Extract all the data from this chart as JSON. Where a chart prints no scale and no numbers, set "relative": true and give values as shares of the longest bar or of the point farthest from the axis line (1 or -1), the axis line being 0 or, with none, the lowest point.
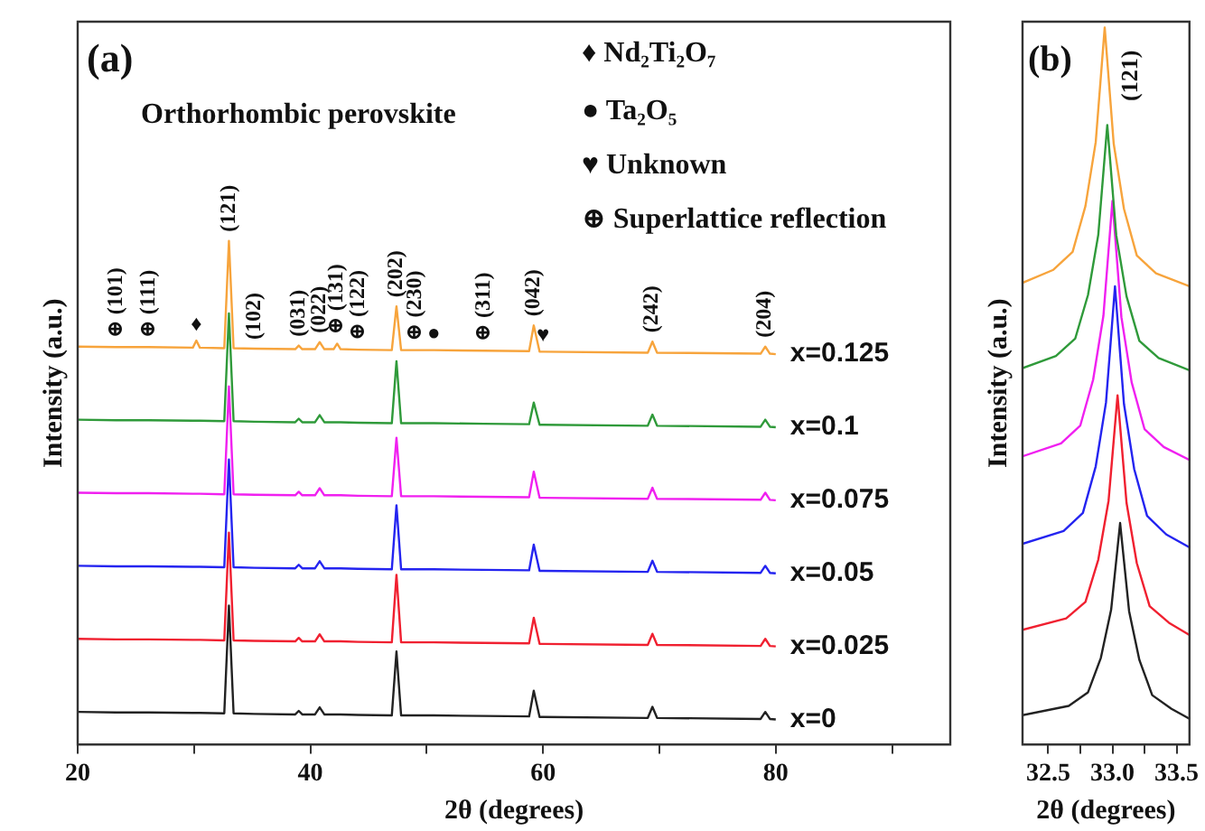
{
  "chart_data": [
    {
      "type": "line",
      "xlabel": "2θ (degrees)",
      "ylabel": "Intensity (a.u.)",
      "relative": true,
      "legend": false,
      "grid": false,
      "marker": "none",
      "tick_labels": "x",
      "xlim": [
        20,
        95
      ],
      "xticks": [
        20,
        {
          "value": 30,
          "label": null
        },
        40,
        {
          "value": 50,
          "label": null
        },
        60,
        {
          "value": 70,
          "label": null
        },
        80,
        {
          "value": 90,
          "label": null
        }
      ],
      "x": [
        20,
        23.3,
        26.1,
        29.9,
        30.2,
        30.5,
        32.6,
        33.0,
        33.4,
        35.2,
        38.7,
        39.0,
        39.3,
        40.4,
        40.8,
        41.2,
        42.0,
        42.3,
        42.6,
        44.1,
        47.0,
        47.4,
        47.8,
        49.0,
        50.6,
        54.9,
        58.8,
        59.2,
        59.7,
        60.0,
        69.0,
        69.4,
        69.8,
        78.7,
        79.1,
        79.5,
        80
      ],
      "series": [
        {
          "name": "x=0",
          "color": "#222222",
          "values": [
            0.065,
            0.064,
            0.064,
            0.063,
            0.063,
            0.063,
            0.062,
            0.276,
            0.062,
            0.061,
            0.06,
            0.067,
            0.06,
            0.06,
            0.074,
            0.06,
            0.06,
            0.06,
            0.06,
            0.059,
            0.058,
            0.185,
            0.058,
            0.058,
            0.058,
            0.057,
            0.056,
            0.107,
            0.055,
            0.055,
            0.053,
            0.075,
            0.053,
            0.051,
            0.065,
            0.051,
            0.05
          ]
        },
        {
          "name": "x=0.025",
          "color": "#f02030",
          "values": [
            0.21,
            0.209,
            0.209,
            0.208,
            0.208,
            0.208,
            0.207,
            0.421,
            0.207,
            0.206,
            0.205,
            0.212,
            0.205,
            0.205,
            0.219,
            0.205,
            0.205,
            0.205,
            0.205,
            0.204,
            0.203,
            0.337,
            0.203,
            0.203,
            0.203,
            0.202,
            0.201,
            0.252,
            0.2,
            0.2,
            0.198,
            0.22,
            0.198,
            0.196,
            0.21,
            0.196,
            0.195
          ]
        },
        {
          "name": "x=0.05",
          "color": "#2424f0",
          "values": [
            0.355,
            0.354,
            0.354,
            0.353,
            0.353,
            0.353,
            0.352,
            0.566,
            0.352,
            0.351,
            0.35,
            0.357,
            0.35,
            0.35,
            0.364,
            0.35,
            0.35,
            0.35,
            0.35,
            0.349,
            0.348,
            0.475,
            0.348,
            0.348,
            0.348,
            0.347,
            0.346,
            0.397,
            0.345,
            0.345,
            0.343,
            0.365,
            0.343,
            0.341,
            0.355,
            0.341,
            0.34
          ]
        },
        {
          "name": "x=0.075",
          "color": "#f020f0",
          "values": [
            0.5,
            0.499,
            0.499,
            0.498,
            0.498,
            0.498,
            0.497,
            0.711,
            0.497,
            0.496,
            0.495,
            0.502,
            0.495,
            0.495,
            0.509,
            0.495,
            0.495,
            0.495,
            0.495,
            0.494,
            0.493,
            0.609,
            0.493,
            0.493,
            0.493,
            0.492,
            0.491,
            0.542,
            0.49,
            0.49,
            0.488,
            0.51,
            0.488,
            0.486,
            0.5,
            0.486,
            0.485
          ]
        },
        {
          "name": "x=0.1",
          "color": "#2f9a3a",
          "values": [
            0.645,
            0.644,
            0.644,
            0.643,
            0.643,
            0.643,
            0.642,
            0.856,
            0.642,
            0.641,
            0.64,
            0.647,
            0.64,
            0.64,
            0.654,
            0.64,
            0.64,
            0.64,
            0.64,
            0.639,
            0.638,
            0.761,
            0.638,
            0.638,
            0.638,
            0.637,
            0.636,
            0.679,
            0.635,
            0.635,
            0.633,
            0.655,
            0.633,
            0.631,
            0.645,
            0.631,
            0.63
          ]
        },
        {
          "name": "x=0.125",
          "color": "#f7a43c",
          "values": [
            0.79,
            0.789,
            0.789,
            0.788,
            0.802,
            0.788,
            0.787,
            1.0,
            0.787,
            0.786,
            0.785,
            0.792,
            0.785,
            0.785,
            0.799,
            0.785,
            0.785,
            0.796,
            0.785,
            0.784,
            0.783,
            0.87,
            0.783,
            0.783,
            0.783,
            0.782,
            0.781,
            0.832,
            0.78,
            0.78,
            0.778,
            0.8,
            0.778,
            0.776,
            0.79,
            0.776,
            0.775
          ]
        }
      ],
      "annotations": [
        "(a)",
        "Orthorhombic perovskite",
        "♦ Nd₂Ti₂O₇",
        "● Ta₂O₅",
        "♥ Unknown",
        "⊕ Superlattice reflection",
        {
          "text": "⊕ (101)",
          "x": 23.3,
          "y": 0.789
        },
        {
          "text": "⊕ (111)",
          "x": 26.1,
          "y": 0.789
        },
        {
          "text": "♦",
          "x": 30.2,
          "y": 0.802
        },
        {
          "text": "(121)",
          "x": 33.0,
          "y": 1.0
        },
        {
          "text": "(102)",
          "x": 35.2,
          "y": 0.786
        },
        {
          "text": "(031)",
          "x": 39.0,
          "y": 0.792
        },
        {
          "text": "(022)",
          "x": 40.8,
          "y": 0.799
        },
        {
          "text": "⊕ (131)",
          "x": 42.3,
          "y": 0.796
        },
        {
          "text": "⊕ (122)",
          "x": 44.1,
          "y": 0.784
        },
        {
          "text": "(202)",
          "x": 47.4,
          "y": 0.87
        },
        {
          "text": "⊕ (230)",
          "x": 49.0,
          "y": 0.783
        },
        {
          "text": "●",
          "x": 50.6,
          "y": 0.783
        },
        {
          "text": "⊕ (311)",
          "x": 54.9,
          "y": 0.782
        },
        {
          "text": "(042)",
          "x": 59.2,
          "y": 0.832
        },
        {
          "text": "♥",
          "x": 60.0,
          "y": 0.78
        },
        {
          "text": "(242)",
          "x": 69.4,
          "y": 0.8
        },
        {
          "text": "(204)",
          "x": 79.1,
          "y": 0.79
        }
      ]
    },
    {
      "type": "line",
      "xlabel": "2θ (degrees)",
      "ylabel": "Intensity (a.u.)",
      "relative": true,
      "legend": false,
      "grid": false,
      "marker": "none",
      "tick_labels": "x",
      "xlim": [
        32.3,
        33.6
      ],
      "xticks": [
        32.5,
        {
          "value": 32.75,
          "label": null
        },
        {
          "value": 33,
          "label": "33.0"
        },
        {
          "value": 33.25,
          "label": null
        },
        33.5
      ],
      "series": [
        {
          "color": "#222222",
          "x": [
            32.3,
            32.66,
            32.81,
            32.91,
            32.99,
            33.06,
            33.13,
            33.21,
            33.31,
            33.46,
            33.6
          ],
          "values": [
            0.041,
            0.054,
            0.073,
            0.121,
            0.188,
            0.309,
            0.186,
            0.118,
            0.069,
            0.05,
            0.036
          ]
        },
        {
          "color": "#f02030",
          "x": [
            32.3,
            32.64,
            32.79,
            32.89,
            32.97,
            33.04,
            33.11,
            33.19,
            33.29,
            33.44,
            33.6
          ],
          "values": [
            0.16,
            0.176,
            0.199,
            0.258,
            0.34,
            0.487,
            0.337,
            0.253,
            0.193,
            0.17,
            0.153
          ]
        },
        {
          "color": "#2424f0",
          "x": [
            32.3,
            32.62,
            32.77,
            32.87,
            32.95,
            33.02,
            33.09,
            33.17,
            33.27,
            33.42,
            33.6
          ],
          "values": [
            0.28,
            0.298,
            0.323,
            0.388,
            0.477,
            0.639,
            0.475,
            0.384,
            0.319,
            0.293,
            0.275
          ]
        },
        {
          "color": "#f020f0",
          "x": [
            32.3,
            32.6,
            32.75,
            32.85,
            32.93,
            33.0,
            33.07,
            33.15,
            33.25,
            33.4,
            33.6
          ],
          "values": [
            0.402,
            0.42,
            0.445,
            0.509,
            0.598,
            0.758,
            0.596,
            0.505,
            0.44,
            0.415,
            0.397
          ]
        },
        {
          "color": "#2f9a3a",
          "x": [
            32.3,
            32.56,
            32.71,
            32.81,
            32.89,
            32.96,
            33.03,
            33.11,
            33.21,
            33.36,
            33.6
          ],
          "values": [
            0.525,
            0.542,
            0.566,
            0.627,
            0.711,
            0.864,
            0.71,
            0.625,
            0.563,
            0.539,
            0.522
          ]
        },
        {
          "color": "#f7a43c",
          "x": [
            32.3,
            32.54,
            32.69,
            32.79,
            32.87,
            32.94,
            33.01,
            33.09,
            33.19,
            33.34,
            33.6
          ],
          "values": [
            0.644,
            0.662,
            0.687,
            0.751,
            0.84,
            1.0,
            0.838,
            0.747,
            0.682,
            0.657,
            0.639
          ]
        }
      ],
      "annotations": [
        "(b)",
        "(121)"
      ]
    }
  ]
}
